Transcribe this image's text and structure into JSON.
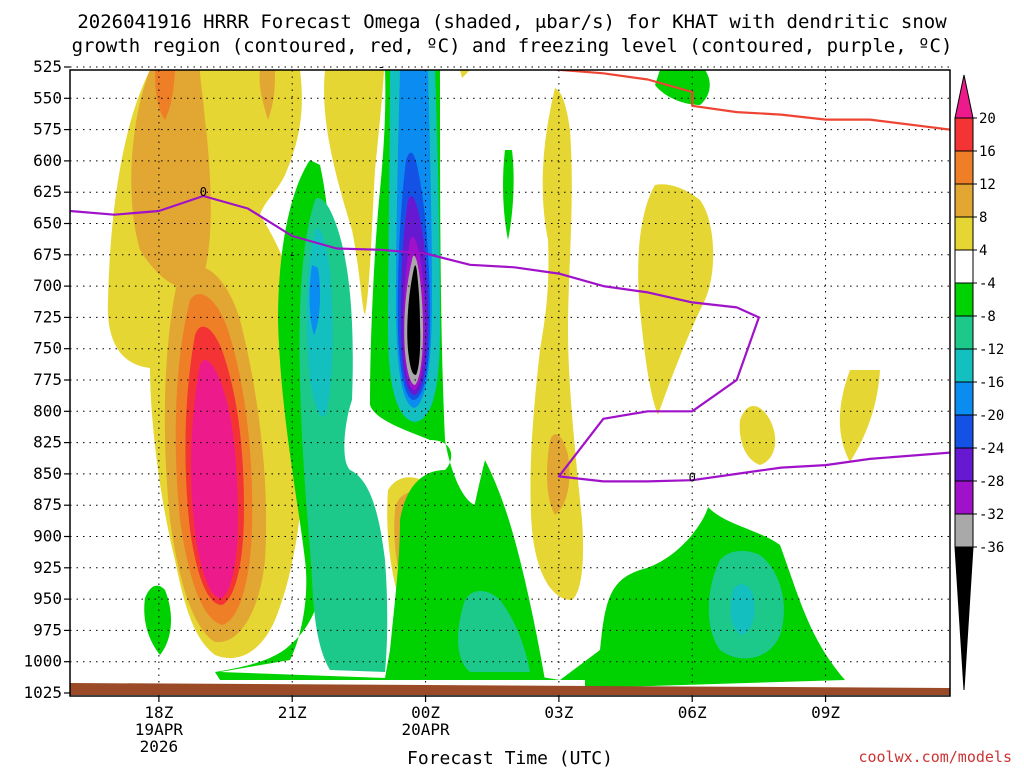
{
  "chart_data": {
    "type": "heatmap",
    "title_line1": "2026041916 HRRR Forecast Omega (shaded, μbar/s) for KHAT with dendritic snow",
    "title_line2": "growth region (contoured, red, ºC) and freezing level (contoured, purple, ºC)",
    "xlabel": "Forecast Time (UTC)",
    "credit": "coolwx.com/models",
    "y_ticks": [
      525,
      550,
      575,
      600,
      625,
      650,
      675,
      700,
      725,
      750,
      775,
      800,
      825,
      850,
      875,
      900,
      925,
      950,
      975,
      1000,
      1025
    ],
    "x_ticks": [
      {
        "hour": 18,
        "lines": [
          "18Z",
          "19APR",
          "2026"
        ]
      },
      {
        "hour": 21,
        "lines": [
          "21Z"
        ]
      },
      {
        "hour": 24,
        "lines": [
          "00Z",
          "20APR"
        ]
      },
      {
        "hour": 27,
        "lines": [
          "03Z"
        ]
      },
      {
        "hour": 30,
        "lines": [
          "06Z"
        ]
      },
      {
        "hour": 33,
        "lines": [
          "09Z"
        ]
      }
    ],
    "x_range_hours": [
      16,
      35.8
    ],
    "y_range_mb": [
      525,
      1025
    ],
    "grid": true,
    "colorbar": {
      "labels": [
        "20",
        "16",
        "12",
        "8",
        "4",
        "-4",
        "-8",
        "-12",
        "-16",
        "-20",
        "-24",
        "-28",
        "-32",
        "-36"
      ],
      "colors": [
        "#f43434",
        "#ee7f27",
        "#e2a633",
        "#e6d633",
        "#ffffff",
        "#00d100",
        "#1cc98a",
        "#14bfbf",
        "#0a8cf0",
        "#1452e6",
        "#6619d1",
        "#a012c9",
        "#a9a9a9"
      ],
      "top_color": "#ed1a8c",
      "bottom_color": "#000000"
    },
    "omega_labels": [
      {
        "hour": 19.0,
        "mb": 625,
        "text": "0"
      },
      {
        "hour": 21.0,
        "mb": 675,
        "text": "-"
      },
      {
        "hour": 23.0,
        "mb": 525,
        "text": "-"
      },
      {
        "hour": 30.0,
        "mb": 853,
        "text": "0"
      }
    ],
    "freezing_level": [
      [
        16.0,
        640
      ],
      [
        17.0,
        643
      ],
      [
        18.0,
        640
      ],
      [
        19.0,
        628
      ],
      [
        20.0,
        638
      ],
      [
        21.0,
        660
      ],
      [
        22.0,
        670
      ],
      [
        23.0,
        671
      ],
      [
        24.0,
        674
      ],
      [
        25.0,
        683
      ],
      [
        26.0,
        685
      ],
      [
        27.0,
        690
      ],
      [
        28.0,
        700
      ],
      [
        29.0,
        705
      ],
      [
        30.0,
        713
      ],
      [
        31.0,
        717
      ],
      [
        31.5,
        725
      ],
      [
        31.0,
        775
      ],
      [
        30.0,
        800
      ],
      [
        29.0,
        800
      ],
      [
        28.0,
        806
      ],
      [
        27.0,
        852
      ],
      [
        28.0,
        856
      ],
      [
        29.0,
        856
      ],
      [
        30.0,
        855
      ],
      [
        31.0,
        850
      ],
      [
        32.0,
        845
      ],
      [
        33.0,
        843
      ],
      [
        34.0,
        838
      ],
      [
        35.8,
        833
      ]
    ],
    "dendritic_zone_top": [
      [
        26.2,
        525
      ],
      [
        28.0,
        530
      ],
      [
        29.0,
        535
      ],
      [
        30.0,
        545
      ],
      [
        30.0,
        556
      ],
      [
        31.0,
        561
      ],
      [
        32.0,
        563
      ],
      [
        33.0,
        567
      ],
      [
        34.0,
        567
      ],
      [
        35.8,
        575
      ]
    ],
    "terrain_surface_mb": [
      1017,
      1021
    ]
  }
}
